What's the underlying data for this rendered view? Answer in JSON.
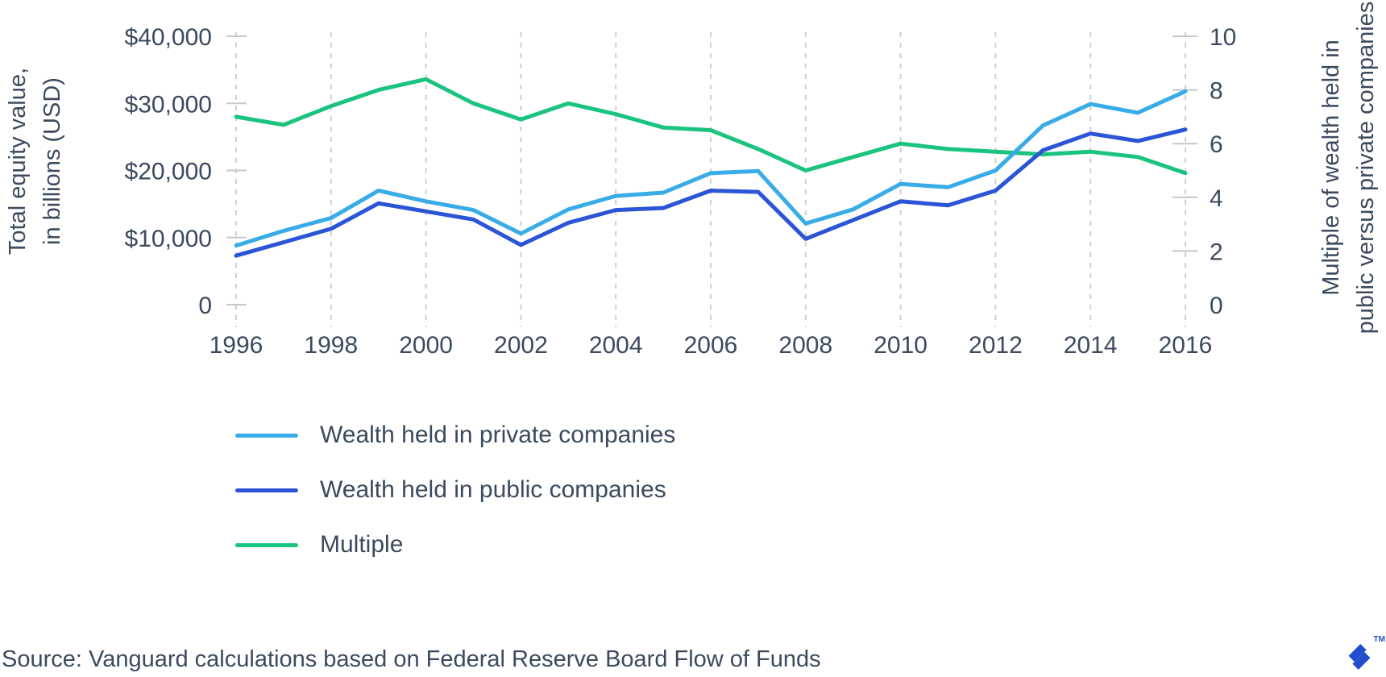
{
  "page": {
    "source_note": "Source: Vanguard calculations based on Federal Reserve Board Flow of Funds",
    "brand": {
      "logo": "toptal-logo",
      "trademark": "TM",
      "logo_color": "#204ECF"
    }
  },
  "chart_data": {
    "type": "line",
    "x": [
      1996,
      1997,
      1998,
      1999,
      2000,
      2001,
      2002,
      2003,
      2004,
      2005,
      2006,
      2007,
      2008,
      2009,
      2010,
      2011,
      2012,
      2013,
      2014,
      2015,
      2016
    ],
    "x_tick_labels": [
      "1996",
      "1998",
      "2000",
      "2002",
      "2004",
      "2006",
      "2008",
      "2010",
      "2012",
      "2014",
      "2016"
    ],
    "left_axis": {
      "title_lines": [
        "Total equity value,",
        "in billions (USD)"
      ],
      "range": [
        0,
        40000
      ],
      "ticks": [
        0,
        10000,
        20000,
        30000,
        40000
      ],
      "tick_labels": [
        "0",
        "$10,000",
        "$20,000",
        "$30,000",
        "$40,000"
      ]
    },
    "right_axis": {
      "title_lines": [
        "Multiple of wealth held in",
        "public versus private companies"
      ],
      "range": [
        0,
        10
      ],
      "ticks": [
        0,
        2,
        4,
        6,
        8,
        10
      ],
      "tick_labels": [
        "0",
        "2",
        "4",
        "6",
        "8",
        "10"
      ]
    },
    "series": [
      {
        "name": "Wealth held in private companies",
        "axis": "left",
        "color": "#39ACE7",
        "values": [
          8800,
          11000,
          12900,
          17000,
          15400,
          14100,
          10600,
          14200,
          16200,
          16700,
          19600,
          19900,
          12100,
          14200,
          18000,
          17500,
          20000,
          26700,
          29900,
          28600,
          31800
        ]
      },
      {
        "name": "Wealth held in public companies",
        "axis": "left",
        "color": "#2B55D6",
        "values": [
          7300,
          9300,
          11300,
          15100,
          13900,
          12700,
          8900,
          12200,
          14100,
          14400,
          17000,
          16800,
          9800,
          12600,
          15400,
          14800,
          17000,
          23000,
          25500,
          24400,
          26100
        ]
      },
      {
        "name": "Multiple",
        "axis": "right",
        "color": "#1BC47E",
        "values": [
          7.0,
          6.7,
          7.4,
          8.0,
          8.4,
          7.5,
          6.9,
          7.5,
          7.1,
          6.6,
          6.5,
          5.8,
          5.0,
          5.5,
          6.0,
          5.8,
          5.7,
          5.6,
          5.7,
          5.5,
          4.9
        ]
      }
    ],
    "grid": {
      "vertical_gridlines_years": [
        1996,
        1998,
        2000,
        2002,
        2004,
        2006,
        2008,
        2010,
        2012,
        2014,
        2016
      ],
      "color": "#CDD0D4",
      "style": "dashed"
    },
    "tick_color": "#C4C8CC",
    "text_color": "#3C4A5E",
    "legend_position": "bottom-left"
  }
}
